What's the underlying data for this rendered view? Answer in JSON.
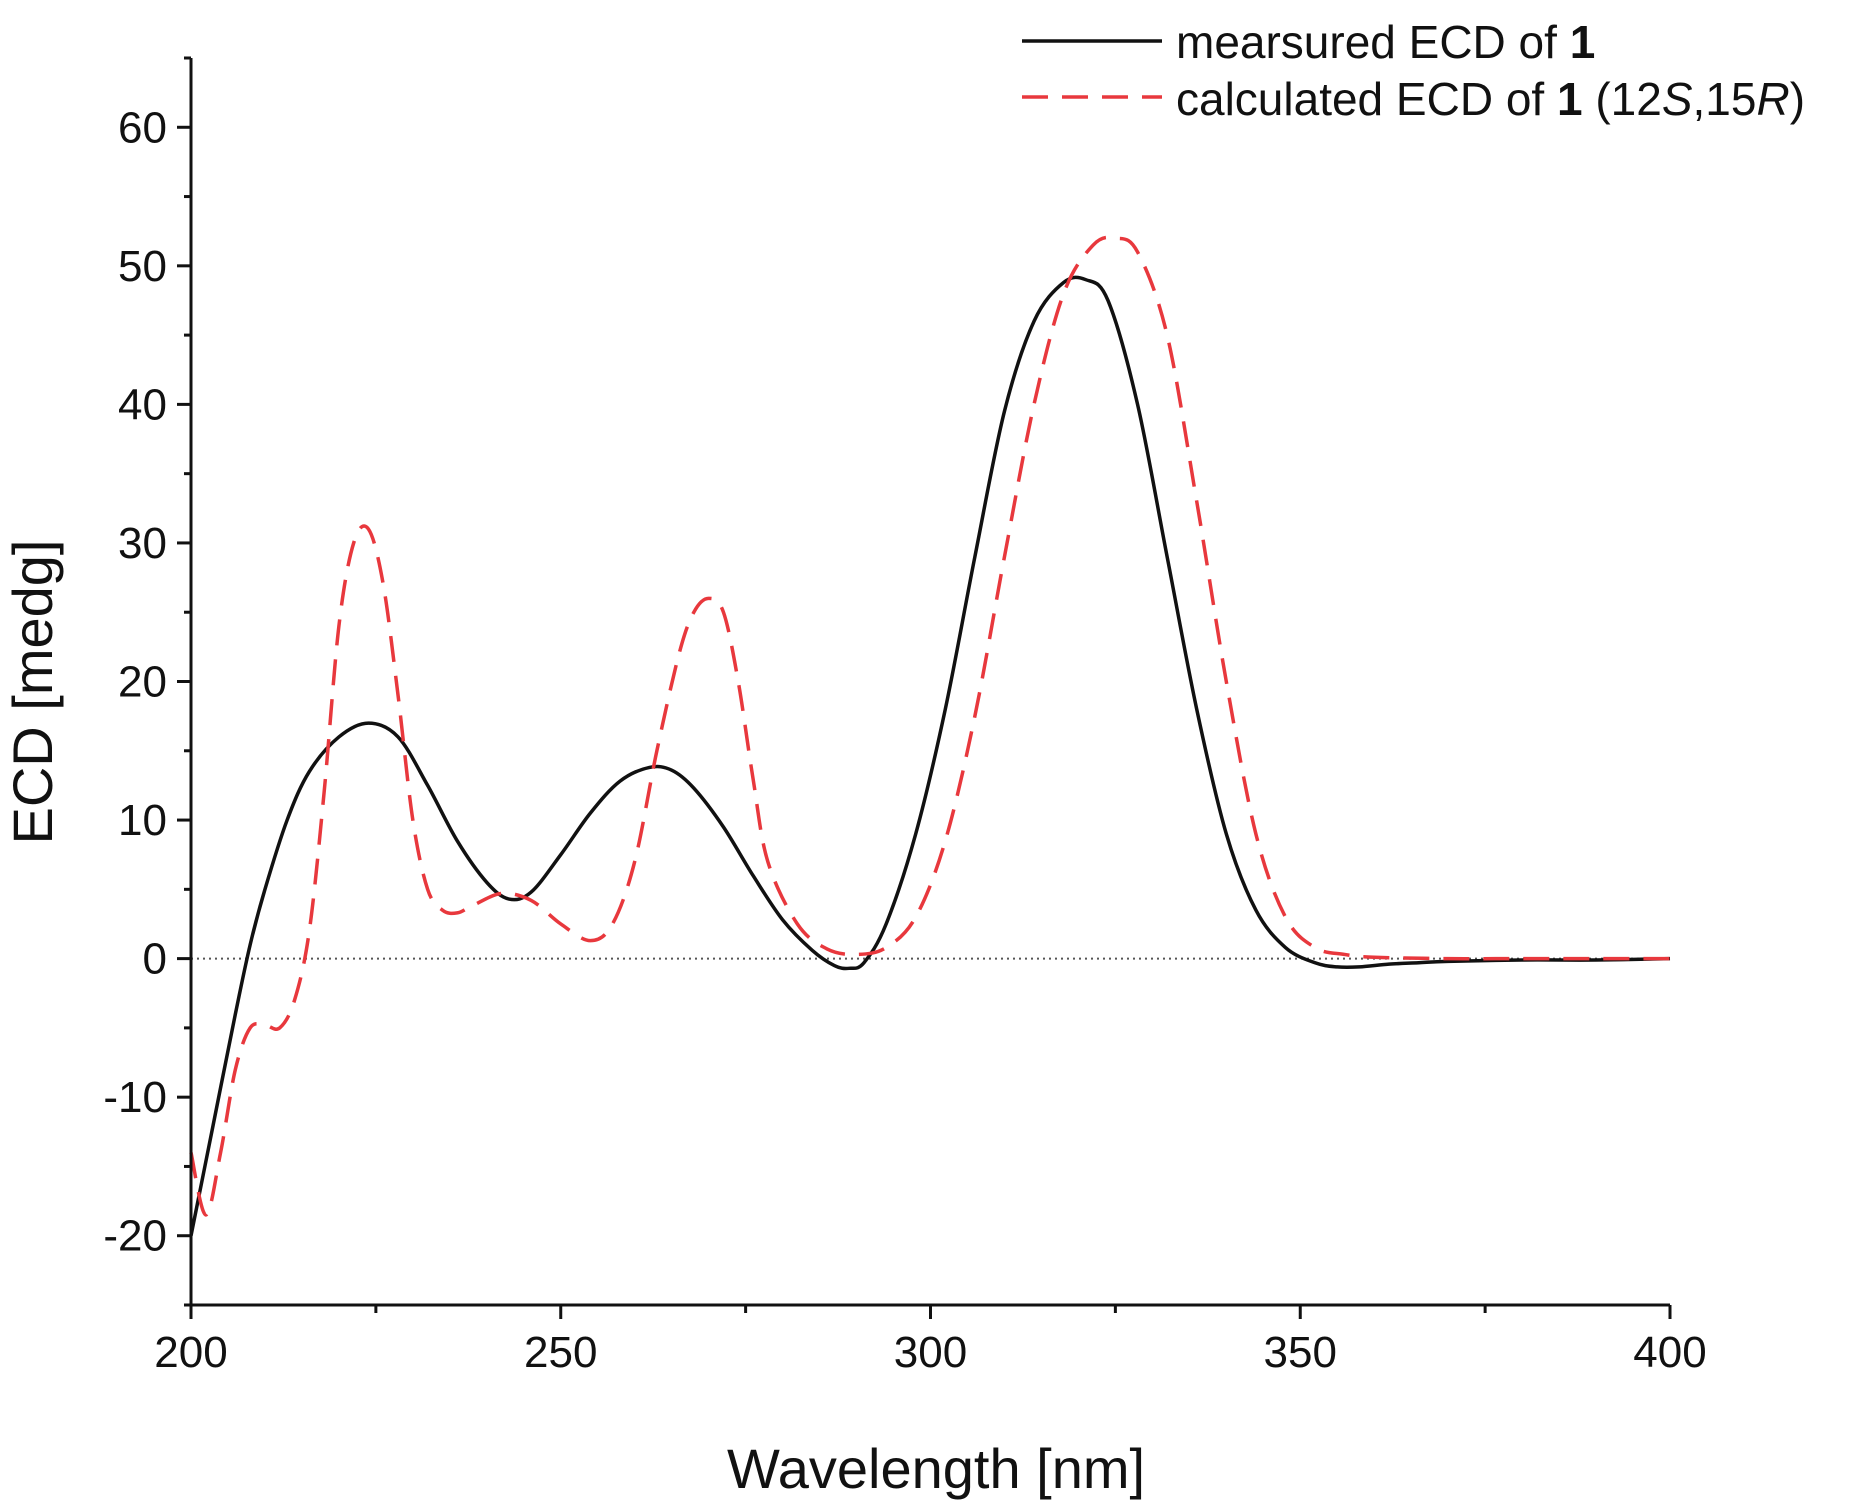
{
  "chart_data": {
    "type": "line",
    "title": "",
    "xlabel": "Wavelength [nm]",
    "ylabel": "ECD [medg]",
    "xlim": [
      200,
      400
    ],
    "ylim": [
      -25,
      65
    ],
    "x_ticks": [
      200,
      250,
      300,
      350,
      400
    ],
    "x_tick_labels": [
      "200",
      "250",
      "300",
      "350",
      "400"
    ],
    "y_ticks": [
      -20,
      -10,
      0,
      10,
      20,
      30,
      40,
      50,
      60
    ],
    "y_tick_labels": [
      "-20",
      "-10",
      "0",
      "10",
      "20",
      "30",
      "40",
      "50",
      "60"
    ],
    "grid": false,
    "legend_position": "top-right",
    "zero_line": true,
    "series": [
      {
        "name": "mearsured ECD of 1",
        "label_text": "mearsured ECD of ",
        "label_bold": "1",
        "color": "#111111",
        "style": "solid",
        "x": [
          200,
          203,
          206,
          208,
          210,
          213,
          216,
          220,
          224,
          228,
          232,
          236,
          240,
          243,
          246,
          250,
          254,
          258,
          262,
          265,
          268,
          272,
          276,
          280,
          284,
          287,
          289,
          291,
          294,
          298,
          302,
          306,
          310,
          314,
          318,
          321,
          324,
          328,
          332,
          336,
          340,
          344,
          348,
          352,
          355,
          358,
          362,
          366,
          370,
          380,
          390,
          400
        ],
        "y": [
          -20,
          -12,
          -4,
          1,
          5,
          10,
          13.5,
          16,
          17,
          16,
          12.5,
          8.5,
          5.5,
          4.3,
          4.8,
          7.5,
          10.5,
          12.8,
          13.8,
          13.6,
          12.3,
          9.5,
          6,
          2.8,
          0.6,
          -0.5,
          -0.7,
          -0.3,
          2.5,
          9,
          18,
          29,
          39.5,
          46,
          48.8,
          49,
          47.5,
          40,
          29,
          18,
          9,
          3.5,
          0.8,
          -0.3,
          -0.6,
          -0.6,
          -0.4,
          -0.3,
          -0.2,
          -0.1,
          -0.1,
          0
        ]
      },
      {
        "name": "calculated ECD of 1 (12S,15R)",
        "label_prefix": "calculated ECD of ",
        "label_bold": "1",
        "label_open": " (12",
        "label_italic_1": "S",
        "label_mid": ",15",
        "label_italic_2": "R",
        "label_close": ")",
        "color": "#e8383d",
        "style": "dashed",
        "x": [
          200,
          202,
          204,
          206,
          208,
          210,
          212,
          214,
          216,
          218,
          220,
          222,
          224,
          226,
          228,
          230,
          232,
          234,
          236,
          238,
          242,
          246,
          250,
          254,
          257,
          260,
          263,
          266,
          268,
          270,
          272,
          274,
          276,
          278,
          282,
          286,
          290,
          294,
          298,
          302,
          306,
          310,
          314,
          318,
          322,
          325,
          328,
          332,
          336,
          340,
          344,
          348,
          352,
          356,
          360,
          370,
          380,
          390,
          400
        ],
        "y": [
          -14,
          -18.5,
          -14,
          -8,
          -5,
          -4.8,
          -5,
          -3,
          2,
          12,
          24,
          30,
          31,
          27,
          19,
          10,
          5,
          3.5,
          3.3,
          3.8,
          4.7,
          4.2,
          2.5,
          1.3,
          2.5,
          7,
          15,
          22,
          25,
          26,
          25,
          20,
          13,
          7,
          2.5,
          0.7,
          0.3,
          0.8,
          3,
          8.5,
          17.5,
          29,
          40,
          48,
          51.5,
          52,
          51,
          45,
          33,
          20,
          9,
          3,
          0.8,
          0.3,
          0.1,
          0,
          0,
          0,
          0
        ]
      }
    ]
  }
}
